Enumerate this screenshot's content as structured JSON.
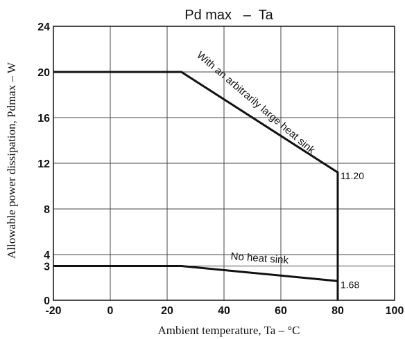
{
  "chart_data": {
    "type": "line",
    "title": "Pd max   –  Ta",
    "xlabel": "Ambient temperature, Ta – °C",
    "ylabel": "Allowable power dissipation, Pdmax – W",
    "xlim": [
      -20,
      100
    ],
    "ylim": [
      0,
      24
    ],
    "x_ticks": [
      "-20",
      "0",
      "20",
      "40",
      "60",
      "80",
      "100"
    ],
    "y_ticks": [
      "0",
      "3",
      "4",
      "8",
      "12",
      "16",
      "20",
      "24"
    ],
    "x_tick_values": [
      -20,
      0,
      20,
      40,
      60,
      80,
      100
    ],
    "y_tick_values": [
      0,
      3,
      4,
      8,
      12,
      16,
      20,
      24
    ],
    "grid": true,
    "series": [
      {
        "name": "With an arbitrarily large heat sink",
        "x": [
          -20,
          25,
          80,
          80
        ],
        "y": [
          20,
          20,
          11.2,
          0
        ]
      },
      {
        "name": "No heat sink",
        "x": [
          -20,
          25,
          80
        ],
        "y": [
          3,
          3,
          1.68
        ]
      }
    ],
    "annotations": [
      {
        "text": "11.20",
        "x": 80,
        "y": 11.2
      },
      {
        "text": "1.68",
        "x": 80,
        "y": 1.68
      }
    ]
  }
}
